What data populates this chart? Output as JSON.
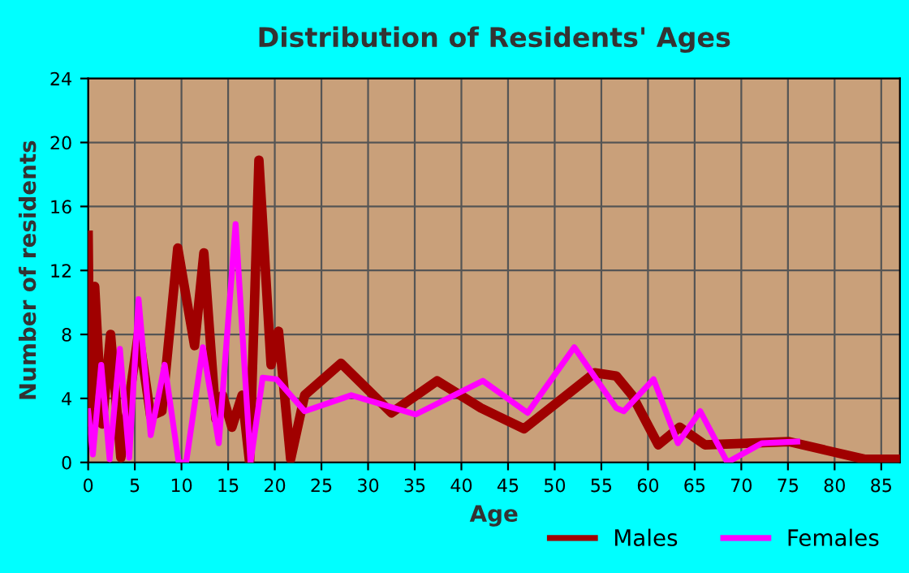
{
  "chart_data": {
    "type": "line",
    "title": "Distribution of Residents' Ages",
    "xlabel": "Age",
    "ylabel": "Number of residents",
    "xlim": [
      0,
      87
    ],
    "xticks": [
      0,
      5,
      10,
      15,
      20,
      25,
      30,
      35,
      40,
      45,
      50,
      55,
      60,
      65,
      70,
      75,
      80,
      85
    ],
    "ylim": [
      0,
      24
    ],
    "yticks": [
      0,
      4,
      8,
      12,
      16,
      20,
      24
    ],
    "grid": true,
    "legend": "bottom right",
    "marker": "none",
    "line_style": "solid",
    "series": [
      {
        "name": "Males",
        "color": "#a00000",
        "x": [
          0,
          0.2,
          0.7,
          1.5,
          2.4,
          3.5,
          5.4,
          6.7,
          7.9,
          9.6,
          11.4,
          12.4,
          13.7,
          14.4,
          15.4,
          16.5,
          17.3,
          18.3,
          19.6,
          20.4,
          21.7,
          23.2,
          27.1,
          32.5,
          37.4,
          42.1,
          46.7,
          54.3,
          56.6,
          58.3,
          61.1,
          63.4,
          66.1,
          75.1,
          83.2,
          86.7
        ],
        "values": [
          14.2,
          2.5,
          11,
          2.4,
          8,
          0.3,
          8.1,
          2.9,
          3.2,
          13.4,
          7.3,
          13.1,
          2.7,
          4.2,
          2.2,
          4.2,
          0,
          18.9,
          6.1,
          8.2,
          0.2,
          4.2,
          6.2,
          3.1,
          5.1,
          3.4,
          2.1,
          5.6,
          5.4,
          4.2,
          1.1,
          2.2,
          1.1,
          1.3,
          0.2,
          0.2
        ]
      },
      {
        "name": "Females",
        "color": "#ff00ff",
        "x": [
          0,
          0.5,
          1.4,
          2.3,
          3.4,
          4.4,
          5.4,
          6.7,
          8.2,
          9.7,
          10.5,
          12.3,
          14.0,
          15.8,
          17.4,
          18.7,
          20.2,
          23.2,
          28.2,
          35.1,
          42.3,
          47.1,
          52.1,
          56.6,
          57.4,
          60.6,
          63.2,
          65.6,
          68.5,
          72.2,
          76
        ],
        "values": [
          3.2,
          0.5,
          6.1,
          0.2,
          7.1,
          0.3,
          10.2,
          1.7,
          6.1,
          0,
          0,
          7.2,
          1.2,
          14.9,
          0,
          5.3,
          5.2,
          3.2,
          4.2,
          3.0,
          5.1,
          3.1,
          7.2,
          3.4,
          3.2,
          5.2,
          1.2,
          3.2,
          0,
          1.2,
          1.3
        ]
      }
    ]
  }
}
